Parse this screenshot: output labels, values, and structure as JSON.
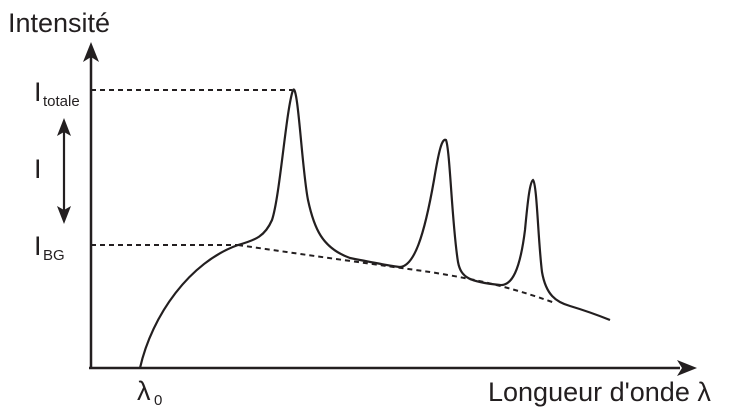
{
  "axes": {
    "y_label": "Intensité",
    "x_label": "Longueur d'onde λ"
  },
  "labels": {
    "i_totale_main": "I",
    "i_totale_sub": "totale",
    "i_main": "I",
    "i_bg_main": "I",
    "i_bg_sub": "BG",
    "lambda0_main": "λ",
    "lambda0_sub": "0"
  },
  "colors": {
    "ink": "#231f20"
  }
}
